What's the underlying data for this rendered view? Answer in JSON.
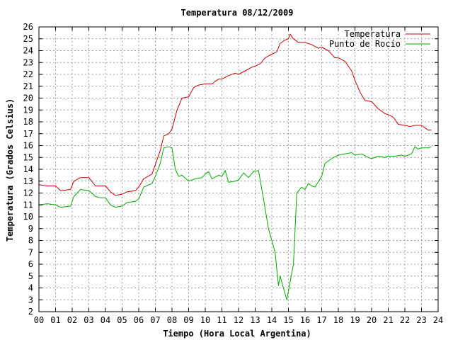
{
  "chart_data": {
    "type": "line",
    "title": "Temperatura 08/12/2009",
    "xlabel": "Tiempo (Hora Local Argentina)",
    "ylabel": "Temperatura (Grados Celsius)",
    "xlim": [
      0,
      24
    ],
    "ylim": [
      2,
      26
    ],
    "x_ticks": [
      "00",
      "01",
      "02",
      "03",
      "04",
      "05",
      "06",
      "07",
      "08",
      "09",
      "10",
      "11",
      "12",
      "13",
      "14",
      "15",
      "16",
      "17",
      "18",
      "19",
      "20",
      "21",
      "22",
      "23",
      "24"
    ],
    "y_ticks": [
      2,
      3,
      4,
      5,
      6,
      7,
      8,
      9,
      10,
      11,
      12,
      13,
      14,
      15,
      16,
      17,
      18,
      19,
      20,
      21,
      22,
      23,
      24,
      25,
      26
    ],
    "grid": true,
    "legend": "top-right",
    "colors": {
      "axis": "#000000",
      "grid": "#a0a0a0"
    },
    "series": [
      {
        "name": "Temperatura",
        "color": "#cc0000",
        "x": [
          0.0,
          0.5,
          1.0,
          1.3,
          1.9,
          2.1,
          2.5,
          3.0,
          3.4,
          3.7,
          4.0,
          4.3,
          4.6,
          5.0,
          5.3,
          5.8,
          6.0,
          6.3,
          6.8,
          7.0,
          7.3,
          7.5,
          7.8,
          8.0,
          8.3,
          8.6,
          9.0,
          9.3,
          9.6,
          10.0,
          10.4,
          10.8,
          11.0,
          11.4,
          11.8,
          12.0,
          12.4,
          12.8,
          13.0,
          13.3,
          13.6,
          14.0,
          14.3,
          14.5,
          14.8,
          15.0,
          15.1,
          15.3,
          15.6,
          16.0,
          16.4,
          16.8,
          17.0,
          17.4,
          17.8,
          18.0,
          18.4,
          18.8,
          19.0,
          19.3,
          19.6,
          20.0,
          20.4,
          20.8,
          21.0,
          21.3,
          21.6,
          22.0,
          22.3,
          22.6,
          23.0,
          23.4,
          23.6
        ],
        "y": [
          12.7,
          12.6,
          12.6,
          12.2,
          12.3,
          13.0,
          13.3,
          13.3,
          12.6,
          12.6,
          12.6,
          12.1,
          11.8,
          11.9,
          12.1,
          12.2,
          12.5,
          13.2,
          13.6,
          14.4,
          15.6,
          16.8,
          17.0,
          17.4,
          19.0,
          20.0,
          20.1,
          20.9,
          21.1,
          21.2,
          21.2,
          21.6,
          21.6,
          21.9,
          22.1,
          22.0,
          22.3,
          22.6,
          22.7,
          22.9,
          23.4,
          23.7,
          23.9,
          24.6,
          24.9,
          25.0,
          25.4,
          25.0,
          24.7,
          24.7,
          24.5,
          24.2,
          24.3,
          24.0,
          23.4,
          23.4,
          23.1,
          22.3,
          21.5,
          20.5,
          19.8,
          19.7,
          19.1,
          18.7,
          18.6,
          18.4,
          17.8,
          17.7,
          17.6,
          17.7,
          17.7,
          17.3,
          17.3
        ]
      },
      {
        "name": "Punto de Rocío",
        "color": "#00aa00",
        "x": [
          0.0,
          0.5,
          1.0,
          1.3,
          1.9,
          2.1,
          2.5,
          3.0,
          3.4,
          3.7,
          4.0,
          4.3,
          4.6,
          5.0,
          5.3,
          5.8,
          6.0,
          6.3,
          6.8,
          7.0,
          7.3,
          7.5,
          7.8,
          8.0,
          8.2,
          8.4,
          8.6,
          9.0,
          9.4,
          9.8,
          10.0,
          10.2,
          10.4,
          10.8,
          11.0,
          11.2,
          11.4,
          11.8,
          12.0,
          12.3,
          12.6,
          12.9,
          13.2,
          13.5,
          13.8,
          14.0,
          14.2,
          14.4,
          14.5,
          14.6,
          14.7,
          14.9,
          15.1,
          15.3,
          15.5,
          15.8,
          16.0,
          16.2,
          16.4,
          16.6,
          17.0,
          17.2,
          17.6,
          18.0,
          18.4,
          18.8,
          19.0,
          19.4,
          19.8,
          20.0,
          20.4,
          20.8,
          21.0,
          21.4,
          21.8,
          22.0,
          22.4,
          22.6,
          22.8,
          23.0,
          23.4,
          23.6
        ],
        "y": [
          11.0,
          11.1,
          11.0,
          10.8,
          10.9,
          11.7,
          12.3,
          12.2,
          11.7,
          11.6,
          11.6,
          11.0,
          10.8,
          10.9,
          11.2,
          11.3,
          11.5,
          12.5,
          12.8,
          13.4,
          14.5,
          15.8,
          15.9,
          15.8,
          14.0,
          13.4,
          13.5,
          13.0,
          13.2,
          13.3,
          13.6,
          13.8,
          13.2,
          13.5,
          13.4,
          13.9,
          12.9,
          13.0,
          13.1,
          13.7,
          13.3,
          13.8,
          13.9,
          11.5,
          9.0,
          8.0,
          7.0,
          4.2,
          5.0,
          4.5,
          4.0,
          3.0,
          4.5,
          6.0,
          12.0,
          12.5,
          12.3,
          12.8,
          12.6,
          12.5,
          13.4,
          14.5,
          14.9,
          15.2,
          15.3,
          15.4,
          15.2,
          15.3,
          15.0,
          14.9,
          15.1,
          15.0,
          15.1,
          15.1,
          15.2,
          15.1,
          15.3,
          15.9,
          15.7,
          15.8,
          15.8,
          15.9
        ]
      }
    ]
  }
}
